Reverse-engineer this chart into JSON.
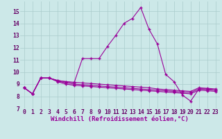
{
  "x": [
    0,
    1,
    2,
    3,
    4,
    5,
    6,
    7,
    8,
    9,
    10,
    11,
    12,
    13,
    14,
    15,
    16,
    17,
    18,
    19,
    20,
    21,
    22,
    23
  ],
  "line1": [
    8.7,
    8.2,
    9.5,
    9.5,
    9.3,
    9.2,
    9.1,
    11.1,
    11.1,
    11.1,
    12.1,
    13.0,
    14.0,
    14.4,
    15.3,
    13.5,
    12.3,
    9.8,
    9.2,
    8.1,
    7.6,
    8.6,
    8.6,
    8.5
  ],
  "line2": [
    8.7,
    8.2,
    9.5,
    9.5,
    9.3,
    9.2,
    9.15,
    9.1,
    9.05,
    9.0,
    8.95,
    8.9,
    8.85,
    8.8,
    8.75,
    8.7,
    8.6,
    8.55,
    8.5,
    8.45,
    8.4,
    8.7,
    8.65,
    8.6
  ],
  "line3": [
    8.7,
    8.2,
    9.5,
    9.5,
    9.25,
    9.1,
    9.0,
    8.95,
    8.9,
    8.85,
    8.8,
    8.75,
    8.7,
    8.65,
    8.6,
    8.55,
    8.5,
    8.45,
    8.4,
    8.35,
    8.3,
    8.6,
    8.55,
    8.5
  ],
  "line4": [
    8.7,
    8.2,
    9.5,
    9.5,
    9.2,
    9.0,
    8.9,
    8.85,
    8.8,
    8.75,
    8.7,
    8.65,
    8.6,
    8.55,
    8.5,
    8.45,
    8.4,
    8.35,
    8.3,
    8.25,
    8.2,
    8.5,
    8.45,
    8.4
  ],
  "color": "#990099",
  "bg_color": "#cce8e8",
  "grid_color": "#aacccc",
  "ylim": [
    7,
    15.8
  ],
  "yticks": [
    7,
    8,
    9,
    10,
    11,
    12,
    13,
    14,
    15
  ],
  "xtick_labels": [
    "0",
    "1",
    "2",
    "3",
    "4",
    "5",
    "6",
    "7",
    "8",
    "9",
    "10",
    "11",
    "12",
    "13",
    "14",
    "15",
    "16",
    "17",
    "18",
    "19",
    "20",
    "21",
    "22",
    "23"
  ],
  "xlabel": "Windchill (Refroidissement éolien,°C)",
  "xlabel_fontsize": 6.5,
  "tick_fontsize": 5.8
}
